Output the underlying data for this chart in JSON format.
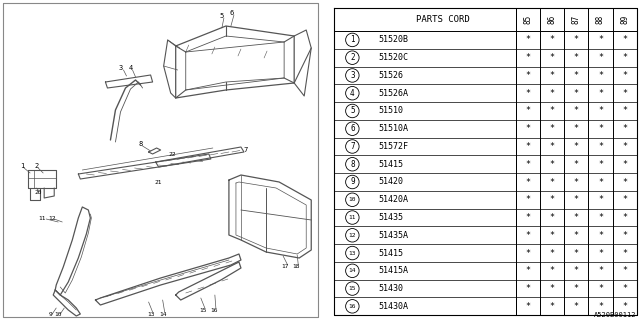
{
  "title": "A520B00112",
  "header": "PARTS CORD",
  "columns": [
    "85",
    "86",
    "87",
    "88",
    "89"
  ],
  "rows": [
    {
      "num": "1",
      "code": "51520B",
      "marks": [
        "*",
        "*",
        "*",
        "*",
        "*"
      ]
    },
    {
      "num": "2",
      "code": "51520C",
      "marks": [
        "*",
        "*",
        "*",
        "*",
        "*"
      ]
    },
    {
      "num": "3",
      "code": "51526",
      "marks": [
        "*",
        "*",
        "*",
        "*",
        "*"
      ]
    },
    {
      "num": "4",
      "code": "51526A",
      "marks": [
        "*",
        "*",
        "*",
        "*",
        "*"
      ]
    },
    {
      "num": "5",
      "code": "51510",
      "marks": [
        "*",
        "*",
        "*",
        "*",
        "*"
      ]
    },
    {
      "num": "6",
      "code": "51510A",
      "marks": [
        "*",
        "*",
        "*",
        "*",
        "*"
      ]
    },
    {
      "num": "7",
      "code": "51572F",
      "marks": [
        "*",
        "*",
        "*",
        "*",
        "*"
      ]
    },
    {
      "num": "8",
      "code": "51415",
      "marks": [
        "*",
        "*",
        "*",
        "*",
        "*"
      ]
    },
    {
      "num": "9",
      "code": "51420",
      "marks": [
        "*",
        "*",
        "*",
        "*",
        "*"
      ]
    },
    {
      "num": "10",
      "code": "51420A",
      "marks": [
        "*",
        "*",
        "*",
        "*",
        "*"
      ]
    },
    {
      "num": "11",
      "code": "51435",
      "marks": [
        "*",
        "*",
        "*",
        "*",
        "*"
      ]
    },
    {
      "num": "12",
      "code": "51435A",
      "marks": [
        "*",
        "*",
        "*",
        "*",
        "*"
      ]
    },
    {
      "num": "13",
      "code": "51415",
      "marks": [
        "*",
        "*",
        "*",
        "*",
        "*"
      ]
    },
    {
      "num": "14",
      "code": "51415A",
      "marks": [
        "*",
        "*",
        "*",
        "*",
        "*"
      ]
    },
    {
      "num": "15",
      "code": "51430",
      "marks": [
        "*",
        "*",
        "*",
        "*",
        "*"
      ]
    },
    {
      "num": "16",
      "code": "51430A",
      "marks": [
        "*",
        "*",
        "*",
        "*",
        "*"
      ]
    }
  ],
  "bg_color": "#ffffff",
  "line_color": "#555555",
  "text_color": "#000000",
  "border_color": "#888888"
}
